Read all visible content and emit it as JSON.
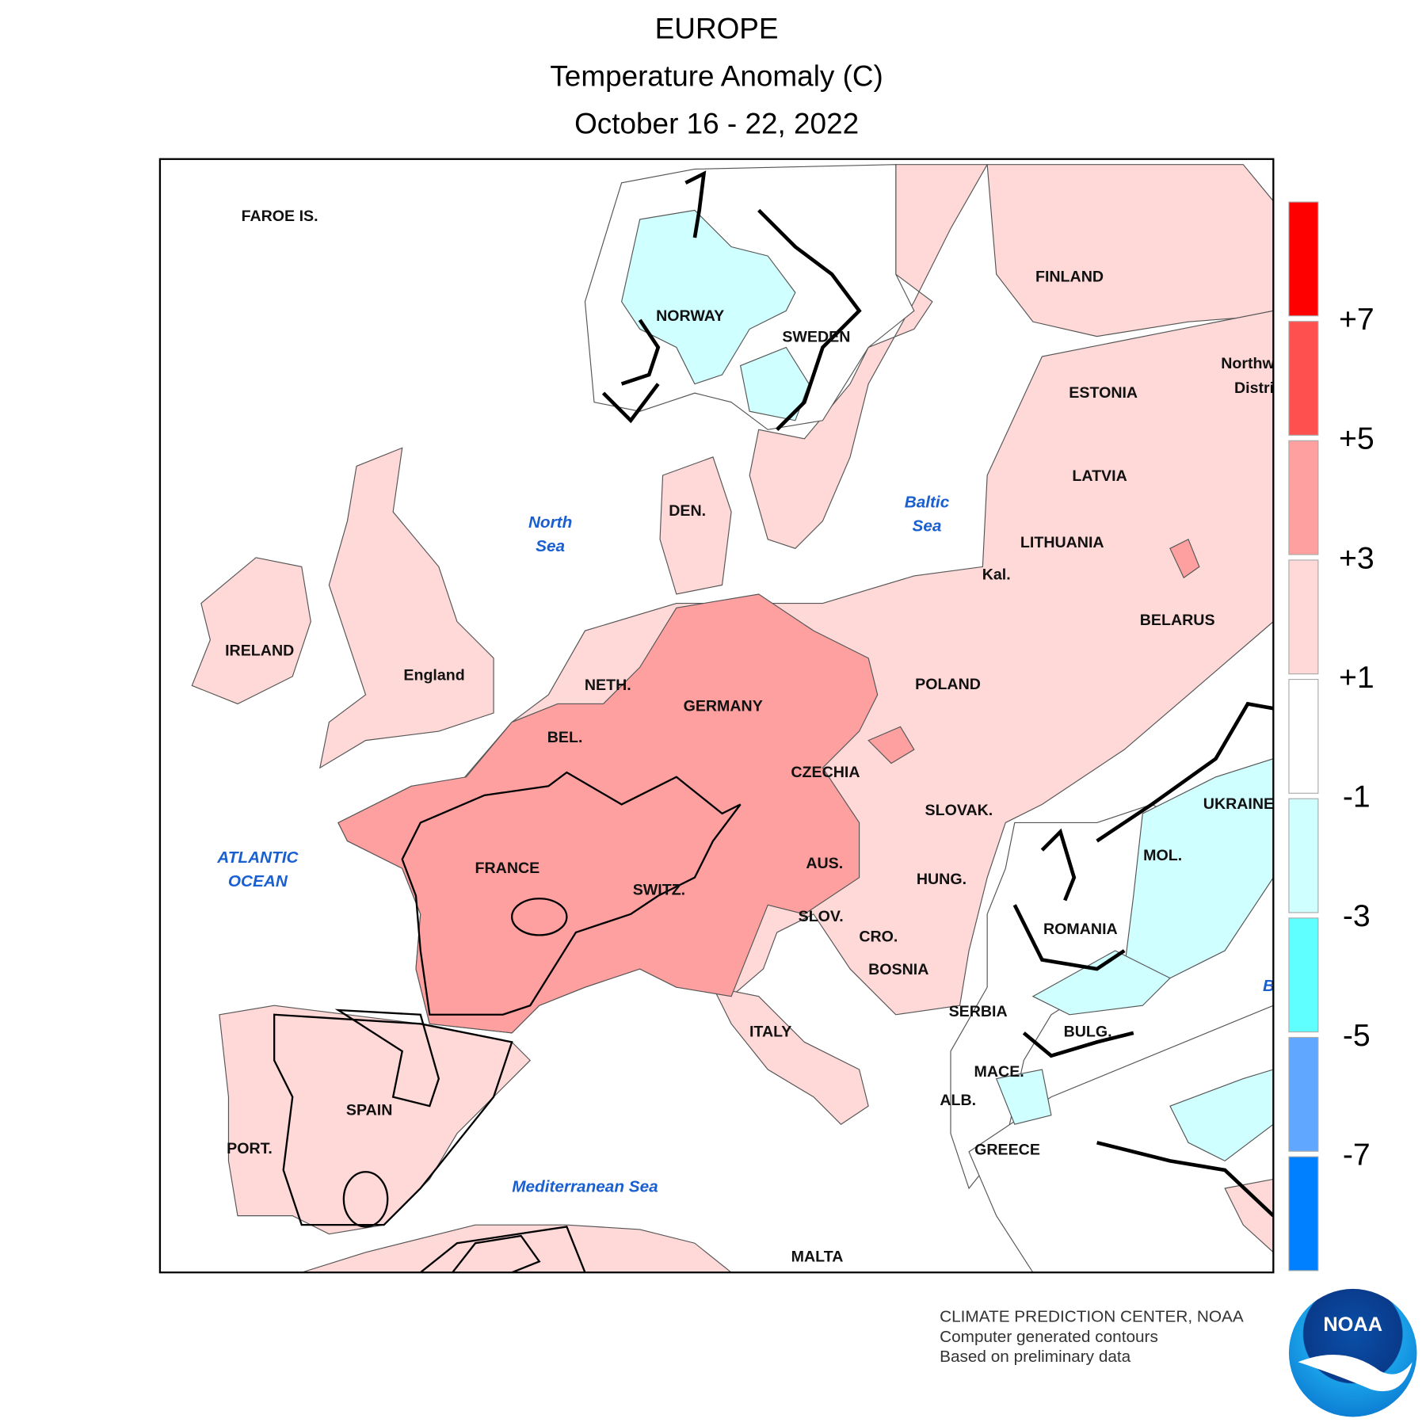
{
  "header": {
    "title": "EUROPE",
    "subtitle": "Temperature Anomaly (C)",
    "dates": "October 16 - 22, 2022"
  },
  "map": {
    "country_labels": [
      "FAROE IS.",
      "FINLAND",
      "NORWAY",
      "SWEDEN",
      "Northw",
      "Distri",
      "ESTONIA",
      "LATVIA",
      "LITHUANIA",
      "Kal.",
      "BELARUS",
      "DEN.",
      "IRELAND",
      "England",
      "NETH.",
      "POLAND",
      "GERMANY",
      "BEL.",
      "CZECHIA",
      "UKRAINE",
      "SLOVAK.",
      "FRANCE",
      "AUS.",
      "MOL.",
      "SWITZ.",
      "HUNG.",
      "SLOV.",
      "ROMANIA",
      "CRO.",
      "BOSNIA",
      "SERBIA",
      "ITALY",
      "BULG.",
      "MACE.",
      "ALB.",
      "SPAIN",
      "PORT.",
      "GREECE",
      "MALTA"
    ],
    "water_labels": [
      [
        "North",
        "Sea"
      ],
      [
        "Baltic",
        "Sea"
      ],
      [
        "ATLANTIC",
        "OCEAN"
      ],
      [
        "Mediterranean Sea"
      ],
      [
        "B"
      ]
    ]
  },
  "colorbar": {
    "colors": [
      "#ff0000",
      "#ff5050",
      "#ffa0a0",
      "#ffd8d8",
      "#ffffff",
      "#d0ffff",
      "#60ffff",
      "#60a8ff",
      "#0080ff"
    ],
    "labels": [
      "+7",
      "+5",
      "+3",
      "+1",
      "-1",
      "-3",
      "-5",
      "-7"
    ]
  },
  "credits": {
    "lines": [
      "CLIMATE PREDICTION CENTER, NOAA",
      "Computer generated contours",
      "Based on preliminary data"
    ],
    "logo": "NOAA"
  }
}
